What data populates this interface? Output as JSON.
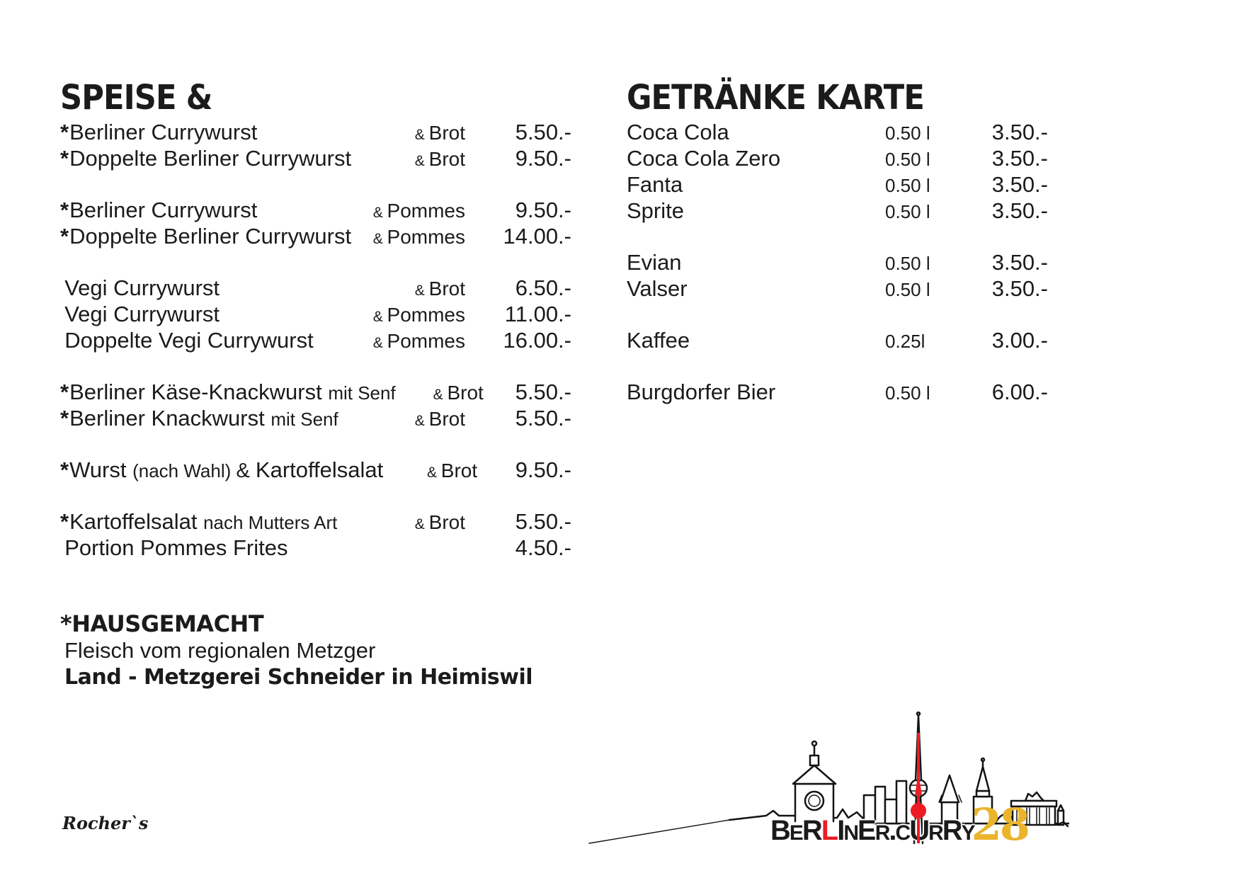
{
  "page": {
    "background": "#ffffff",
    "text_color": "#1b1b1b"
  },
  "left": {
    "title": "SPEISE &",
    "groups": [
      {
        "items": [
          {
            "star": true,
            "name_parts": [
              {
                "text": "Berliner Currywurst",
                "size": "lg"
              }
            ],
            "side": {
              "amp": "&",
              "word": "Brot"
            },
            "price": "5.50.-"
          },
          {
            "star": true,
            "name_parts": [
              {
                "text": "Doppelte Berliner Currywurst",
                "size": "lg"
              }
            ],
            "side": {
              "amp": "&",
              "word": "Brot"
            },
            "price": "9.50.-"
          }
        ]
      },
      {
        "items": [
          {
            "star": true,
            "name_parts": [
              {
                "text": "Berliner Currywurst",
                "size": "lg"
              }
            ],
            "side": {
              "amp": "&",
              "word": "Pommes"
            },
            "price": "9.50.-"
          },
          {
            "star": true,
            "name_parts": [
              {
                "text": "Doppelte Berliner Currywurst",
                "size": "lg"
              }
            ],
            "side": {
              "amp": "&",
              "word": "Pommes"
            },
            "price": "14.00.-"
          }
        ]
      },
      {
        "items": [
          {
            "star": false,
            "name_parts": [
              {
                "text": "Vegi Currywurst",
                "size": "lg"
              }
            ],
            "side": {
              "amp": "&",
              "word": "Brot"
            },
            "price": "6.50.-"
          },
          {
            "star": false,
            "name_parts": [
              {
                "text": "Vegi Currywurst",
                "size": "lg"
              }
            ],
            "side": {
              "amp": "&",
              "word": "Pommes"
            },
            "price": "11.00.-"
          },
          {
            "star": false,
            "name_parts": [
              {
                "text": "Doppelte Vegi Currywurst",
                "size": "lg"
              }
            ],
            "side": {
              "amp": "&",
              "word": "Pommes"
            },
            "price": "16.00.-"
          }
        ]
      },
      {
        "items": [
          {
            "star": true,
            "name_parts": [
              {
                "text": "Berliner Käse-Knackwurst ",
                "size": "lg"
              },
              {
                "text": "mit Senf",
                "size": "sm"
              }
            ],
            "side": {
              "amp": "&",
              "word": "Brot"
            },
            "price": "5.50.-"
          },
          {
            "star": true,
            "name_parts": [
              {
                "text": "Berliner Knackwurst ",
                "size": "lg"
              },
              {
                "text": "mit Senf",
                "size": "sm"
              }
            ],
            "side": {
              "amp": "&",
              "word": "Brot"
            },
            "price": "5.50.-"
          }
        ]
      },
      {
        "items": [
          {
            "star": true,
            "name_parts": [
              {
                "text": "Wurst ",
                "size": "lg"
              },
              {
                "text": "(nach Wahl) ",
                "size": "sm"
              },
              {
                "text": "& ",
                "size": "md"
              },
              {
                "text": "Kartoffelsalat",
                "size": "lg"
              }
            ],
            "side": {
              "amp": "&",
              "word": "Brot"
            },
            "price": "9.50.-"
          }
        ]
      },
      {
        "items": [
          {
            "star": true,
            "name_parts": [
              {
                "text": "Kartoffelsalat ",
                "size": "lg"
              },
              {
                "text": "nach Mutters Art",
                "size": "sm"
              }
            ],
            "side": {
              "amp": "&",
              "word": "Brot"
            },
            "price": "5.50.-"
          },
          {
            "star": false,
            "name_parts": [
              {
                "text": "Portion Pommes Frites",
                "size": "lg"
              }
            ],
            "side": null,
            "price": "4.50.-"
          }
        ]
      }
    ],
    "footnote": {
      "title": "*HAUSGEMACHT",
      "line2": "Fleisch vom regionalen Metzger",
      "line3": "Land - Metzgerei Schneider in Heimiswil"
    },
    "signature": "Rocher`s"
  },
  "right": {
    "title": "GETRÄNKE KARTE",
    "groups": [
      {
        "items": [
          {
            "name": "Coca Cola",
            "volume": "0.50 l",
            "price": "3.50.-"
          },
          {
            "name": "Coca Cola Zero",
            "volume": "0.50 l",
            "price": "3.50.-"
          },
          {
            "name": "Fanta",
            "volume": "0.50 l",
            "price": "3.50.-"
          },
          {
            "name": "Sprite",
            "volume": "0.50 l",
            "price": "3.50.-"
          }
        ]
      },
      {
        "items": [
          {
            "name": "Evian",
            "volume": "0.50 l",
            "price": "3.50.-"
          },
          {
            "name": "Valser",
            "volume": "0.50 l",
            "price": "3.50.-"
          }
        ]
      },
      {
        "items": [
          {
            "name": "Kaffee",
            "volume": "0.25l",
            "price": "3.00.-"
          }
        ]
      },
      {
        "items": [
          {
            "name": "Burgdorfer Bier",
            "volume": "0.50 l",
            "price": "6.00.-"
          }
        ]
      }
    ]
  },
  "logo": {
    "parts": [
      {
        "text": "BER",
        "color": "black"
      },
      {
        "text": "L",
        "color": "red"
      },
      {
        "text": "INER.CURRY",
        "color": "black"
      },
      {
        "text": "28",
        "color": "yellow"
      }
    ],
    "colors": {
      "black": "#1b1b1b",
      "red": "#ed1c24",
      "yellow": "#eab42c"
    }
  }
}
